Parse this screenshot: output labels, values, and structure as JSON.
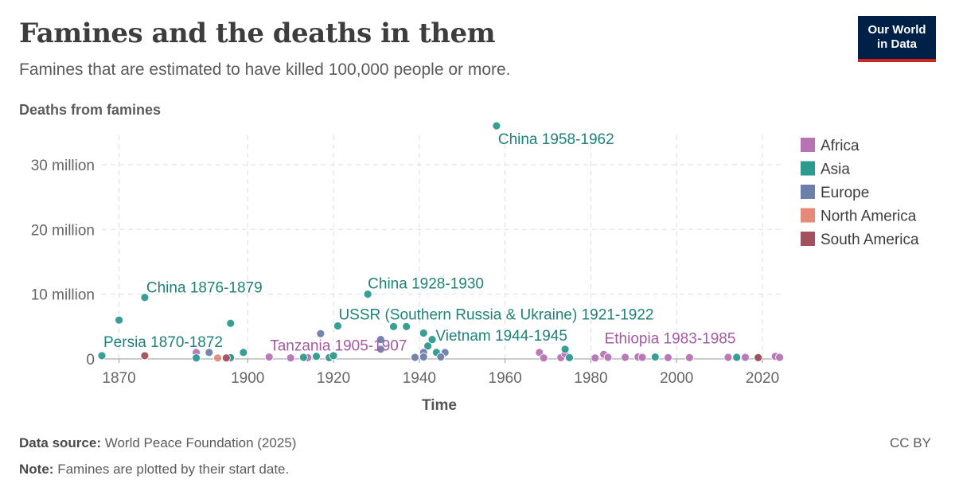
{
  "header": {
    "title": "Famines and the deaths in them",
    "subtitle": "Famines that are estimated to have killed 100,000 people or more.",
    "logo_line1": "Our World",
    "logo_line2": "in Data"
  },
  "footer": {
    "source_label": "Data source:",
    "source_text": "World Peace Foundation (2025)",
    "note_label": "Note:",
    "note_text": "Famines are plotted by their start date.",
    "license": "CC BY"
  },
  "colors": {
    "Africa": "#b674b4",
    "Asia": "#2c9a8e",
    "Europe": "#6d7fab",
    "North America": "#e6897a",
    "South America": "#a2505e"
  },
  "chart_data": {
    "type": "scatter",
    "title": "Famines and the deaths in them",
    "ylabel": "Deaths from famines",
    "xlabel": "Time",
    "xlim": [
      1866,
      2025
    ],
    "ylim": [
      0,
      37000000
    ],
    "x_ticks": [
      1870,
      1900,
      1920,
      1940,
      1960,
      1980,
      2000,
      2020
    ],
    "y_ticks": [
      {
        "value": 0,
        "label": "0"
      },
      {
        "value": 10000000,
        "label": "10 million"
      },
      {
        "value": 20000000,
        "label": "20 million"
      },
      {
        "value": 30000000,
        "label": "30 million"
      }
    ],
    "grid": true,
    "legend_position": "right",
    "legend": [
      "Africa",
      "Asia",
      "Europe",
      "North America",
      "South America"
    ],
    "series": [
      {
        "name": "Africa",
        "points": [
          {
            "x": 1888,
            "y": 1000000
          },
          {
            "x": 1896,
            "y": 100000
          },
          {
            "x": 1905,
            "y": 300000
          },
          {
            "x": 1910,
            "y": 150000
          },
          {
            "x": 1914,
            "y": 200000
          },
          {
            "x": 1968,
            "y": 1000000
          },
          {
            "x": 1969,
            "y": 150000
          },
          {
            "x": 1973,
            "y": 200000
          },
          {
            "x": 1974,
            "y": 800000
          },
          {
            "x": 1981,
            "y": 150000
          },
          {
            "x": 1983,
            "y": 700000
          },
          {
            "x": 1984,
            "y": 250000
          },
          {
            "x": 1988,
            "y": 250000
          },
          {
            "x": 1991,
            "y": 300000
          },
          {
            "x": 1992,
            "y": 250000
          },
          {
            "x": 1998,
            "y": 200000
          },
          {
            "x": 2003,
            "y": 200000
          },
          {
            "x": 2012,
            "y": 250000
          },
          {
            "x": 2016,
            "y": 250000
          },
          {
            "x": 2023,
            "y": 400000
          },
          {
            "x": 2024,
            "y": 250000
          }
        ]
      },
      {
        "name": "Asia",
        "points": [
          {
            "x": 1866,
            "y": 500000
          },
          {
            "x": 1870,
            "y": 6000000
          },
          {
            "x": 1876,
            "y": 9500000
          },
          {
            "x": 1896,
            "y": 5500000
          },
          {
            "x": 1888,
            "y": 150000
          },
          {
            "x": 1896,
            "y": 200000
          },
          {
            "x": 1899,
            "y": 1000000
          },
          {
            "x": 1913,
            "y": 250000
          },
          {
            "x": 1916,
            "y": 400000
          },
          {
            "x": 1919,
            "y": 200000
          },
          {
            "x": 1920,
            "y": 500000
          },
          {
            "x": 1921,
            "y": 5100000
          },
          {
            "x": 1928,
            "y": 10000000
          },
          {
            "x": 1934,
            "y": 5000000
          },
          {
            "x": 1937,
            "y": 5000000
          },
          {
            "x": 1941,
            "y": 4000000
          },
          {
            "x": 1942,
            "y": 2000000
          },
          {
            "x": 1943,
            "y": 3000000
          },
          {
            "x": 1944,
            "y": 1000000
          },
          {
            "x": 1958,
            "y": 36000000
          },
          {
            "x": 1974,
            "y": 1500000
          },
          {
            "x": 1975,
            "y": 200000
          },
          {
            "x": 1995,
            "y": 300000
          },
          {
            "x": 2014,
            "y": 250000
          },
          {
            "x": 2019,
            "y": 250000
          }
        ]
      },
      {
        "name": "Europe",
        "points": [
          {
            "x": 1891,
            "y": 1000000
          },
          {
            "x": 1917,
            "y": 3900000
          },
          {
            "x": 1931,
            "y": 1500000
          },
          {
            "x": 1931,
            "y": 3000000
          },
          {
            "x": 1939,
            "y": 250000
          },
          {
            "x": 1941,
            "y": 1000000
          },
          {
            "x": 1941,
            "y": 300000
          },
          {
            "x": 1946,
            "y": 1000000
          },
          {
            "x": 1945,
            "y": 300000
          }
        ]
      },
      {
        "name": "North America",
        "points": [
          {
            "x": 1893,
            "y": 150000
          }
        ]
      },
      {
        "name": "South America",
        "points": [
          {
            "x": 1876,
            "y": 500000
          },
          {
            "x": 1895,
            "y": 150000
          },
          {
            "x": 2019,
            "y": 200000
          }
        ]
      }
    ],
    "annotations": [
      {
        "text": "China 1958-1962",
        "x": 1958,
        "y": 36000000,
        "series": "Asia"
      },
      {
        "text": "China 1876-1879",
        "x": 1876,
        "y": 9500000,
        "series": "Asia"
      },
      {
        "text": "China 1928-1930",
        "x": 1928,
        "y": 10000000,
        "series": "Asia"
      },
      {
        "text": "USSR (Southern Russia & Ukraine) 1921-1922",
        "x": 1921,
        "y": 5100000,
        "series": "Asia"
      },
      {
        "text": "Persia 1870-1872",
        "x": 1866,
        "y": 500000,
        "series": "Asia"
      },
      {
        "text": "Tanzania 1905-1907",
        "x": 1905,
        "y": 300000,
        "series": "Africa"
      },
      {
        "text": "Vietnam 1944-1945",
        "x": 1944,
        "y": 1000000,
        "series": "Asia"
      },
      {
        "text": "Ethiopia 1983-1985",
        "x": 1983,
        "y": 700000,
        "series": "Africa"
      }
    ]
  }
}
